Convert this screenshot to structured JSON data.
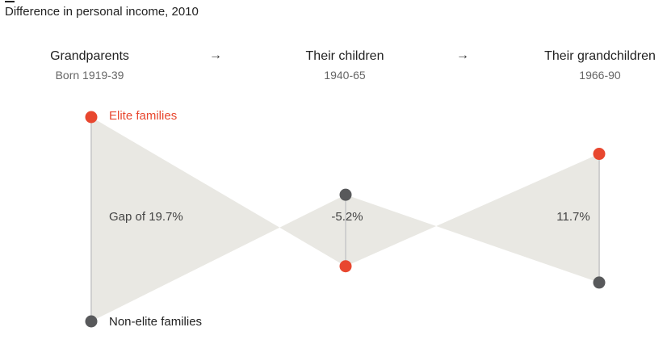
{
  "title": "Difference in personal income, 2010",
  "generations": [
    {
      "label": "Grandparents",
      "years": "Born 1919-39"
    },
    {
      "label": "Their children",
      "years": "1940-65"
    },
    {
      "label": "Their grandchildren",
      "years": "1966-90"
    }
  ],
  "arrow": "→",
  "legend": {
    "elite": "Elite families",
    "non_elite": "Non-elite families"
  },
  "colors": {
    "elite": "#e8472f",
    "non_elite": "#58595b",
    "band": "#e9e8e3",
    "stem": "#cfcfcf"
  },
  "chart_data": {
    "type": "other",
    "title": "Difference in personal income, 2010",
    "series": [
      {
        "name": "Elite families",
        "values": [
          1,
          0.27,
          0.82
        ]
      },
      {
        "name": "Non-elite families",
        "values": [
          0,
          0.62,
          0.19
        ]
      }
    ],
    "categories": [
      "Grandparents",
      "Their children",
      "Their grandchildren"
    ],
    "gaps": [
      {
        "generation": "Grandparents",
        "value": 19.7,
        "label": "Gap of 19.7%"
      },
      {
        "generation": "Their children",
        "value": -5.2,
        "label": "-5.2%"
      },
      {
        "generation": "Their grandchildren",
        "value": 11.7,
        "label": "11.7%"
      }
    ]
  }
}
